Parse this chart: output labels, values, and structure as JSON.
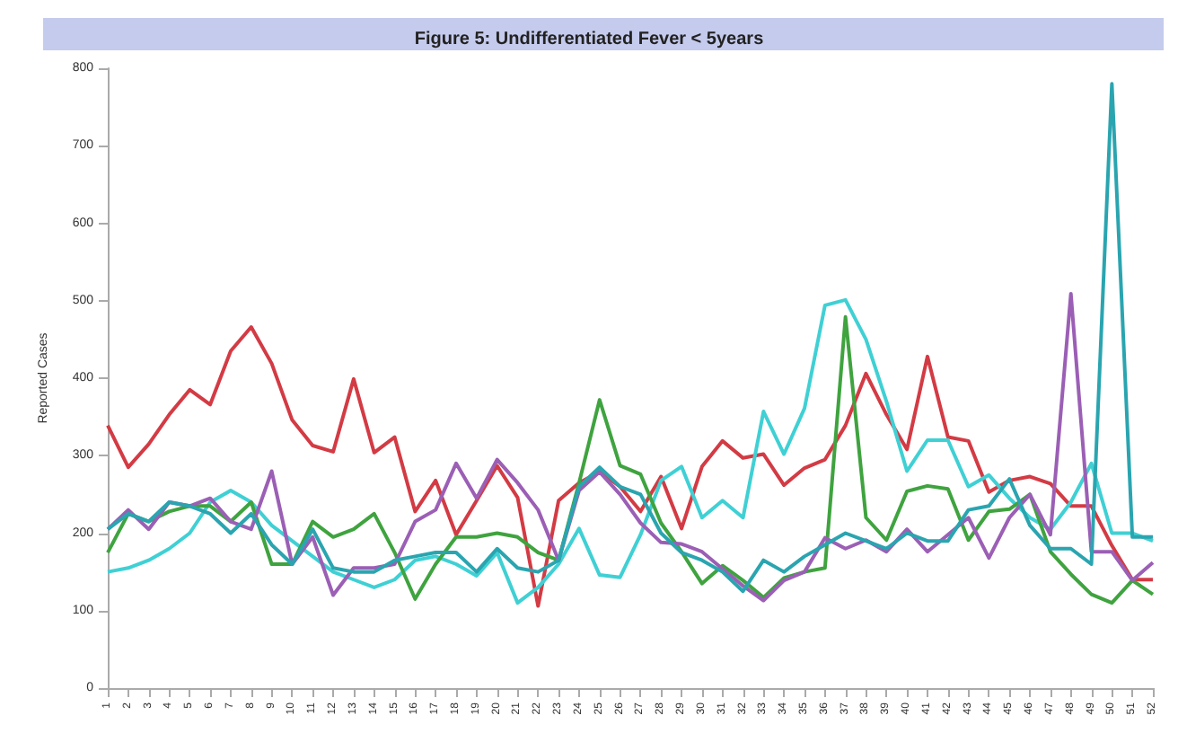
{
  "chart_data": {
    "type": "line",
    "title": "Figure 5: Undifferentiated Fever < 5years",
    "ylabel": "Reported Cases",
    "categories": [
      "1",
      "2",
      "3",
      "4",
      "5",
      "6",
      "7",
      "8",
      "9",
      "10",
      "11",
      "12",
      "13",
      "14",
      "15",
      "16",
      "17",
      "18",
      "19",
      "20",
      "21",
      "22",
      "23",
      "24",
      "25",
      "26",
      "27",
      "28",
      "29",
      "30",
      "31",
      "32",
      "33",
      "34",
      "35",
      "36",
      "37",
      "38",
      "39",
      "40",
      "41",
      "42",
      "43",
      "44",
      "45",
      "46",
      "47",
      "48",
      "49",
      "50",
      "51",
      "52"
    ],
    "ylim": [
      0,
      800
    ],
    "yticks": [
      0,
      100,
      200,
      300,
      400,
      500,
      600,
      700,
      800
    ],
    "grid": false,
    "marker": "none",
    "line_style": "solid",
    "series": [
      {
        "color": "#d33b44",
        "values": [
          339,
          285,
          315,
          353,
          385,
          366,
          435,
          466,
          419,
          346,
          313,
          305,
          399,
          304,
          324,
          228,
          268,
          198,
          242,
          287,
          246,
          106,
          242,
          265,
          279,
          260,
          228,
          273,
          206,
          286,
          319,
          297,
          302,
          262,
          284,
          295,
          339,
          406,
          353,
          308,
          428,
          324,
          319,
          253,
          268,
          273,
          264,
          235,
          235,
          184,
          140,
          140
        ]
      },
      {
        "color": "#3fd0d4",
        "values": [
          150,
          155,
          165,
          180,
          200,
          240,
          255,
          240,
          210,
          190,
          170,
          150,
          140,
          130,
          140,
          165,
          170,
          160,
          145,
          175,
          110,
          130,
          160,
          206,
          146,
          143,
          198,
          268,
          286,
          220,
          242,
          220,
          357,
          302,
          361,
          494,
          501,
          450,
          370,
          280,
          320,
          320,
          260,
          275,
          245,
          220,
          205,
          240,
          290,
          200,
          200,
          190
        ]
      },
      {
        "color": "#3fa33f",
        "values": [
          175,
          225,
          215,
          228,
          235,
          235,
          215,
          240,
          160,
          160,
          215,
          195,
          205,
          225,
          175,
          115,
          160,
          195,
          195,
          200,
          195,
          175,
          165,
          265,
          372,
          287,
          276,
          213,
          176,
          135,
          158,
          139,
          117,
          142,
          150,
          155,
          479,
          220,
          191,
          254,
          261,
          257,
          191,
          228,
          231,
          250,
          176,
          147,
          121,
          110,
          139,
          121
        ]
      },
      {
        "color": "#9b5fb5",
        "values": [
          205,
          230,
          205,
          240,
          235,
          245,
          215,
          205,
          280,
          160,
          195,
          120,
          155,
          155,
          160,
          215,
          230,
          290,
          245,
          295,
          265,
          230,
          165,
          255,
          279,
          250,
          213,
          188,
          186,
          176,
          154,
          132,
          113,
          139,
          150,
          194,
          180,
          191,
          176,
          205,
          176,
          198,
          220,
          168,
          220,
          250,
          198,
          509,
          176,
          176,
          139,
          162
        ]
      },
      {
        "color": "#2aa5b0",
        "values": [
          205,
          225,
          215,
          240,
          235,
          225,
          200,
          225,
          185,
          160,
          205,
          155,
          150,
          150,
          165,
          170,
          175,
          175,
          150,
          180,
          155,
          150,
          165,
          260,
          285,
          260,
          250,
          200,
          175,
          165,
          150,
          125,
          165,
          150,
          170,
          185,
          200,
          190,
          180,
          200,
          190,
          190,
          230,
          235,
          270,
          210,
          180,
          180,
          160,
          780,
          195,
          195
        ]
      }
    ]
  }
}
